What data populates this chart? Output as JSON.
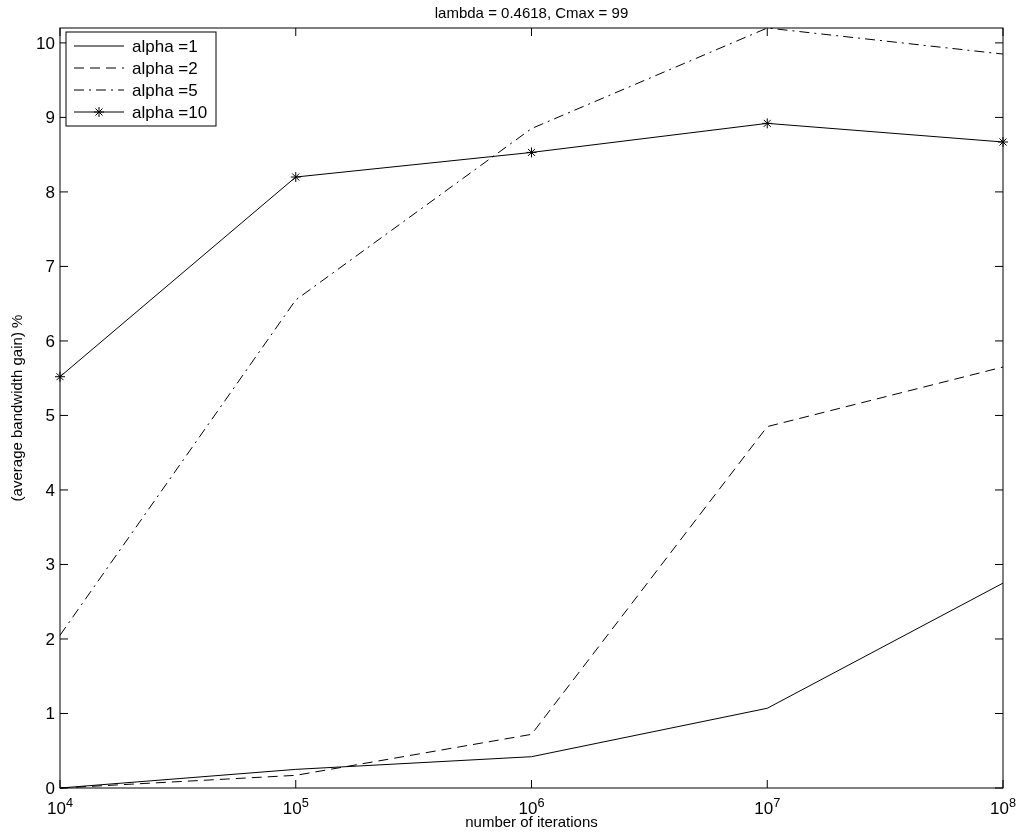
{
  "chart_data": {
    "type": "line",
    "title": "lambda = 0.4618, Cmax = 99",
    "xlabel": "number of iterations",
    "ylabel": "(average bandwidth gain) %",
    "x": [
      10000,
      100000,
      1000000,
      10000000,
      100000000
    ],
    "series": [
      {
        "name": "alpha =1",
        "color": "#000000",
        "line_style": "solid",
        "marker": "none",
        "values": [
          0,
          0.25,
          0.42,
          1.07,
          2.75
        ]
      },
      {
        "name": "alpha =2",
        "color": "#000000",
        "line_style": "dashed",
        "marker": "none",
        "values": [
          0,
          0.17,
          0.72,
          4.85,
          5.65
        ]
      },
      {
        "name": "alpha =5",
        "color": "#000000",
        "line_style": "dashdot",
        "marker": "none",
        "values": [
          2.05,
          6.55,
          8.85,
          10.2,
          9.85
        ]
      },
      {
        "name": "alpha =10",
        "color": "#000000",
        "line_style": "solid",
        "marker": "cross",
        "values": [
          5.52,
          8.2,
          8.53,
          8.92,
          8.67
        ]
      }
    ],
    "log": "x",
    "xlim": [
      10000,
      100000000
    ],
    "ylim": [
      0,
      10.2
    ],
    "xticks": [
      {
        "value": 10000,
        "label": "10$^{4}$"
      },
      {
        "value": 100000,
        "label": "10$^{5}$"
      },
      {
        "value": 1000000,
        "label": "10$^{6}$"
      },
      {
        "value": 10000000,
        "label": "10$^{7}$"
      },
      {
        "value": 100000000,
        "label": "10$^{8}$"
      }
    ],
    "yticks": [
      0,
      1,
      2,
      3,
      4,
      5,
      6,
      7,
      8,
      9,
      10
    ],
    "grid": false,
    "legend": "top left"
  }
}
